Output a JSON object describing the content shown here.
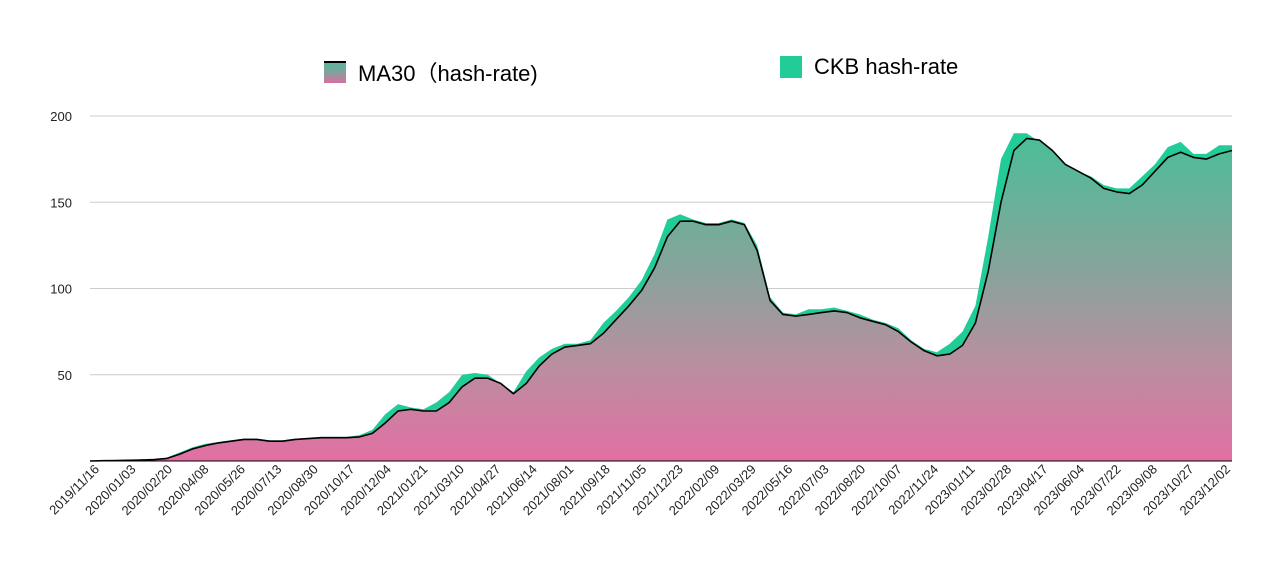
{
  "chart_data": {
    "type": "area",
    "title": "",
    "xlabel": "",
    "ylabel": "",
    "ylim": [
      0,
      200
    ],
    "yticks": [
      50,
      100,
      150,
      200
    ],
    "grid": true,
    "legend_position": "top",
    "x_ticks": [
      "2019/11/16",
      "2020/01/03",
      "2020/02/20",
      "2020/04/08",
      "2020/05/26",
      "2020/07/13",
      "2020/08/30",
      "2020/10/17",
      "2020/12/04",
      "2021/01/21",
      "2021/03/10",
      "2021/04/27",
      "2021/06/14",
      "2021/08/01",
      "2021/09/18",
      "2021/11/05",
      "2021/12/23",
      "2022/02/09",
      "2022/03/29",
      "2022/05/16",
      "2022/07/03",
      "2022/08/20",
      "2022/10/07",
      "2022/11/24",
      "2023/01/11",
      "2023/02/28",
      "2023/04/17",
      "2023/06/04",
      "2023/07/22",
      "2023/09/08",
      "2023/10/27",
      "2023/12/02"
    ],
    "series": [
      {
        "name": "CKB hash-rate",
        "color": "#22cc99",
        "values": [
          0,
          0.5,
          0.5,
          0.5,
          1,
          1,
          2,
          5,
          8,
          10,
          11,
          12,
          13,
          13,
          12,
          12,
          13,
          13,
          14,
          14,
          14,
          15,
          18,
          27,
          33,
          31,
          30,
          34,
          40,
          50,
          51,
          50,
          45,
          40,
          52,
          60,
          65,
          68,
          68,
          70,
          80,
          87,
          95,
          105,
          120,
          140,
          143,
          140,
          138,
          138,
          140,
          138,
          125,
          95,
          86,
          85,
          88,
          88,
          89,
          87,
          85,
          82,
          80,
          77,
          70,
          65,
          63,
          68,
          75,
          90,
          130,
          175,
          190,
          190,
          185,
          180,
          172,
          168,
          165,
          160,
          158,
          158,
          165,
          172,
          182,
          185,
          178,
          178,
          183,
          183
        ]
      },
      {
        "name": "MA30（hash-rate)",
        "color": "#000000",
        "values": [
          0,
          0.2,
          0.3,
          0.4,
          0.6,
          0.8,
          1.5,
          4,
          7,
          9,
          10.5,
          11.5,
          12.5,
          12.5,
          11.5,
          11.5,
          12.5,
          13,
          13.5,
          13.5,
          13.5,
          14,
          16,
          22,
          29,
          30,
          29,
          29,
          34,
          43,
          48,
          48,
          45,
          39,
          45,
          55,
          62,
          66,
          67,
          68,
          74,
          82,
          90,
          99,
          112,
          130,
          139,
          139,
          137,
          137,
          139,
          137,
          122,
          93,
          85,
          84,
          85,
          86,
          87,
          86,
          83,
          81,
          79,
          75,
          69,
          64,
          61,
          62,
          67,
          80,
          110,
          150,
          180,
          187,
          186,
          180,
          172,
          168,
          164,
          158,
          156,
          155,
          160,
          168,
          176,
          179,
          176,
          175,
          178,
          180
        ]
      }
    ]
  }
}
